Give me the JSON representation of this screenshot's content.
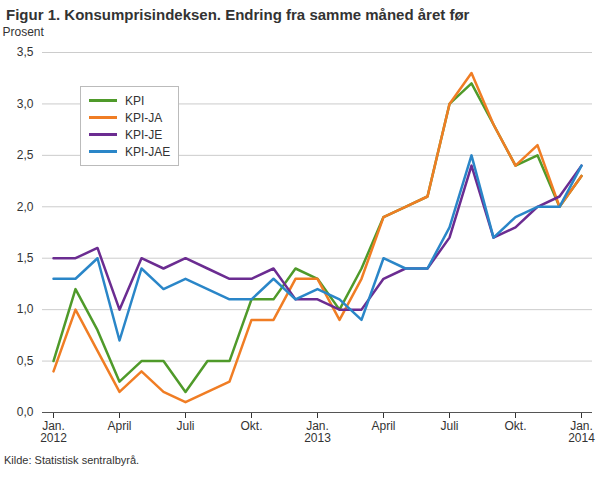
{
  "chart_data": {
    "type": "line",
    "title": "Figur 1. Konsumprisindeksen. Endring fra samme måned året før",
    "y_label": "Prosent",
    "caption": "Kilde: Statistisk sentralbyrå.",
    "categories": [
      "Jan.\n2012",
      null,
      null,
      "April",
      null,
      null,
      "Juli",
      null,
      null,
      "Okt.",
      null,
      null,
      "Jan.\n2013",
      null,
      null,
      "April",
      null,
      null,
      "Juli",
      null,
      null,
      "Okt.",
      null,
      null,
      "Jan.\n2014"
    ],
    "series": [
      {
        "name": "KPI",
        "color": "#4f9a2a",
        "values": [
          0.5,
          1.2,
          0.8,
          0.3,
          0.5,
          0.5,
          0.2,
          0.5,
          0.5,
          1.1,
          1.1,
          1.4,
          1.3,
          1.0,
          1.4,
          1.9,
          2.0,
          2.1,
          3.0,
          3.2,
          2.8,
          2.4,
          2.5,
          2.0,
          2.3
        ]
      },
      {
        "name": "KPI-JA",
        "color": "#f07d24",
        "values": [
          0.4,
          1.0,
          0.6,
          0.2,
          0.4,
          0.2,
          0.1,
          0.2,
          0.3,
          0.9,
          0.9,
          1.3,
          1.3,
          0.9,
          1.3,
          1.9,
          2.0,
          2.1,
          3.0,
          3.3,
          2.8,
          2.4,
          2.6,
          2.0,
          2.3
        ]
      },
      {
        "name": "KPI-JE",
        "color": "#6b2c91",
        "values": [
          1.5,
          1.5,
          1.6,
          1.0,
          1.5,
          1.4,
          1.5,
          1.4,
          1.3,
          1.3,
          1.4,
          1.1,
          1.1,
          1.0,
          1.0,
          1.3,
          1.4,
          1.4,
          1.7,
          2.4,
          1.7,
          1.8,
          2.0,
          2.1,
          2.4
        ]
      },
      {
        "name": "KPI-JAE",
        "color": "#2a86c8",
        "values": [
          1.3,
          1.3,
          1.5,
          0.7,
          1.4,
          1.2,
          1.3,
          1.2,
          1.1,
          1.1,
          1.3,
          1.1,
          1.2,
          1.1,
          0.9,
          1.5,
          1.4,
          1.4,
          1.8,
          2.5,
          1.7,
          1.9,
          2.0,
          2.0,
          2.4
        ]
      }
    ],
    "ylim": [
      0,
      3.5
    ],
    "yticks": [
      {
        "value": 0,
        "label": "0,0"
      },
      {
        "value": 0.5,
        "label": "0,5"
      },
      {
        "value": 1,
        "label": "1,0"
      },
      {
        "value": 1.5,
        "label": "1,5"
      },
      {
        "value": 2,
        "label": "2,0"
      },
      {
        "value": 2.5,
        "label": "2,5"
      },
      {
        "value": 3,
        "label": "3,0"
      },
      {
        "value": 3.5,
        "label": "3,5"
      }
    ],
    "grid": true,
    "legend": "top-left"
  }
}
